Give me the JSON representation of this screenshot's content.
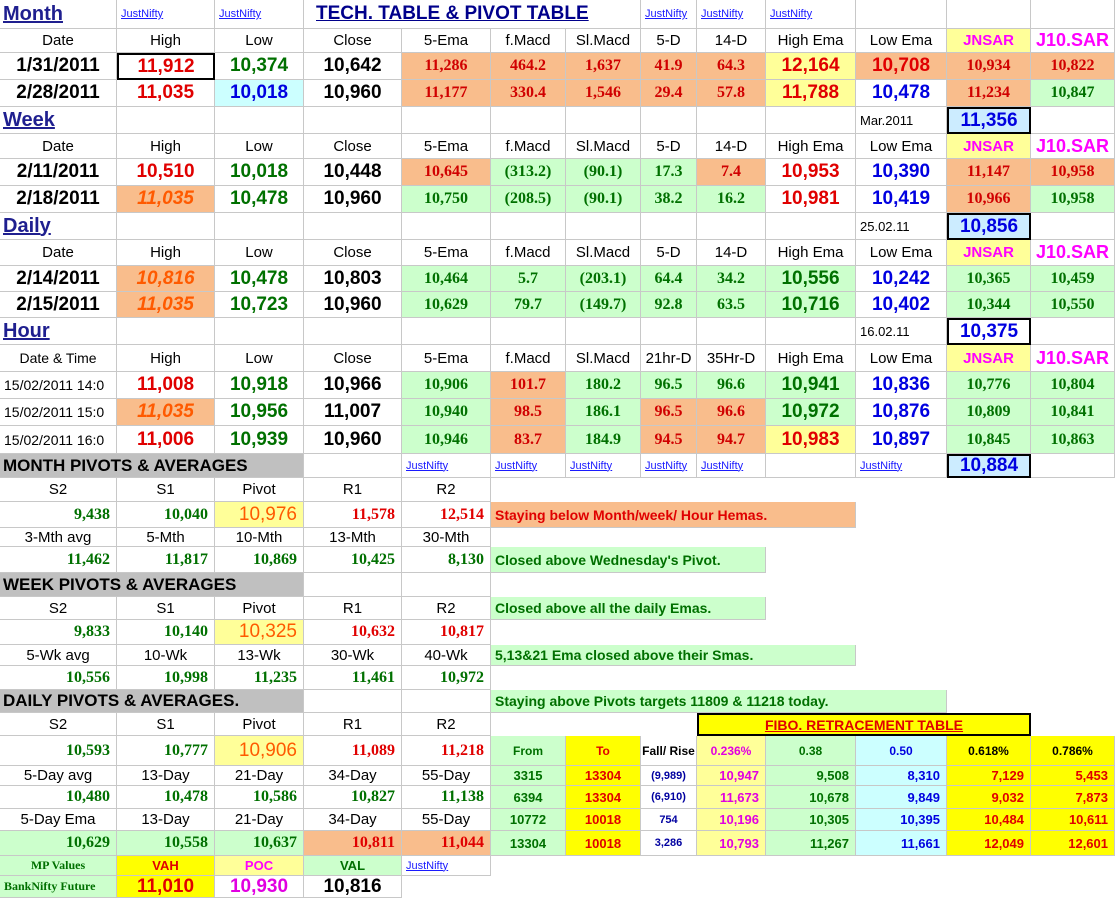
{
  "title": "TECH. TABLE  &  PIVOT TABLE",
  "link": "JustNifty",
  "sections": {
    "month": "Month",
    "week": "Week",
    "daily": "Daily",
    "hour": "Hour"
  },
  "headers": {
    "date": "Date",
    "high": "High",
    "low": "Low",
    "close": "Close",
    "ema5": "5-Ema",
    "fmacd": "f.Macd",
    "slmacd": "Sl.Macd",
    "d5": "5-D",
    "d14": "14-D",
    "highema": "High Ema",
    "lowema": "Low Ema",
    "jnsar": "JNSAR",
    "j10sar": "J10.SAR",
    "datetime": "Date & Time",
    "hr21": "21hr-D",
    "hr35": "35Hr-D"
  },
  "month": {
    "rows": [
      {
        "date": "1/31/2011",
        "high": "11,912",
        "low": "10,374",
        "close": "10,642",
        "ema5": "11,286",
        "fmacd": "464.2",
        "slmacd": "1,637",
        "d5": "41.9",
        "d14": "64.3",
        "highema": "12,164",
        "lowema": "10,708",
        "jnsar": "10,934",
        "j10sar": "10,822"
      },
      {
        "date": "2/28/2011",
        "high": "11,035",
        "low": "10,018",
        "close": "10,960",
        "ema5": "11,177",
        "fmacd": "330.4",
        "slmacd": "1,546",
        "d5": "29.4",
        "d14": "57.8",
        "highema": "11,788",
        "lowema": "10,478",
        "jnsar": "11,234",
        "j10sar": "10,847"
      }
    ],
    "next_label": "Mar.2011",
    "next_value": "11,356"
  },
  "week": {
    "rows": [
      {
        "date": "2/11/2011",
        "high": "10,510",
        "low": "10,018",
        "close": "10,448",
        "ema5": "10,645",
        "fmacd": "(313.2)",
        "slmacd": "(90.1)",
        "d5": "17.3",
        "d14": "7.4",
        "highema": "10,953",
        "lowema": "10,390",
        "jnsar": "11,147",
        "j10sar": "10,958"
      },
      {
        "date": "2/18/2011",
        "high": "11,035",
        "low": "10,478",
        "close": "10,960",
        "ema5": "10,750",
        "fmacd": "(208.5)",
        "slmacd": "(90.1)",
        "d5": "38.2",
        "d14": "16.2",
        "highema": "10,981",
        "lowema": "10,419",
        "jnsar": "10,966",
        "j10sar": "10,958"
      }
    ],
    "next_label": "25.02.11",
    "next_value": "10,856"
  },
  "daily": {
    "rows": [
      {
        "date": "2/14/2011",
        "high": "10,816",
        "low": "10,478",
        "close": "10,803",
        "ema5": "10,464",
        "fmacd": "5.7",
        "slmacd": "(203.1)",
        "d5": "64.4",
        "d14": "34.2",
        "highema": "10,556",
        "lowema": "10,242",
        "jnsar": "10,365",
        "j10sar": "10,459"
      },
      {
        "date": "2/15/2011",
        "high": "11,035",
        "low": "10,723",
        "close": "10,960",
        "ema5": "10,629",
        "fmacd": "79.7",
        "slmacd": "(149.7)",
        "d5": "92.8",
        "d14": "63.5",
        "highema": "10,716",
        "lowema": "10,402",
        "jnsar": "10,344",
        "j10sar": "10,550"
      }
    ],
    "next_label": "16.02.11",
    "next_value": "10,375"
  },
  "hour": {
    "rows": [
      {
        "date": "15/02/2011 14:0",
        "high": "11,008",
        "low": "10,918",
        "close": "10,966",
        "ema5": "10,906",
        "fmacd": "101.7",
        "slmacd": "180.2",
        "d5": "96.5",
        "d14": "96.6",
        "highema": "10,941",
        "lowema": "10,836",
        "jnsar": "10,776",
        "j10sar": "10,804"
      },
      {
        "date": "15/02/2011 15:0",
        "high": "11,035",
        "low": "10,956",
        "close": "11,007",
        "ema5": "10,940",
        "fmacd": "98.5",
        "slmacd": "186.1",
        "d5": "96.5",
        "d14": "96.6",
        "highema": "10,972",
        "lowema": "10,876",
        "jnsar": "10,809",
        "j10sar": "10,841"
      },
      {
        "date": "15/02/2011 16:0",
        "high": "11,006",
        "low": "10,939",
        "close": "10,960",
        "ema5": "10,946",
        "fmacd": "83.7",
        "slmacd": "184.9",
        "d5": "94.5",
        "d14": "94.7",
        "highema": "10,983",
        "lowema": "10,897",
        "jnsar": "10,845",
        "j10sar": "10,863"
      }
    ],
    "next_value": "10,884"
  },
  "pivot_headers": {
    "s2": "S2",
    "s1": "S1",
    "pivot": "Pivot",
    "r1": "R1",
    "r2": "R2"
  },
  "month_pivots": {
    "title": "MONTH  PIVOTS  &  AVERAGES",
    "values": [
      "9,438",
      "10,040",
      "10,976",
      "11,578",
      "12,514"
    ],
    "avg_labels": [
      "3-Mth avg",
      "5-Mth",
      "10-Mth",
      "13-Mth",
      "30-Mth"
    ],
    "avg_values": [
      "11,462",
      "11,817",
      "10,869",
      "10,425",
      "8,130"
    ]
  },
  "week_pivots": {
    "title": "WEEK  PIVOTS  &  AVERAGES",
    "values": [
      "9,833",
      "10,140",
      "10,325",
      "10,632",
      "10,817"
    ],
    "avg_labels": [
      "5-Wk avg",
      "10-Wk",
      "13-Wk",
      "30-Wk",
      "40-Wk"
    ],
    "avg_values": [
      "10,556",
      "10,998",
      "11,235",
      "11,461",
      "10,972"
    ]
  },
  "daily_pivots": {
    "title": "DAILY  PIVOTS  &  AVERAGES.",
    "values": [
      "10,593",
      "10,777",
      "10,906",
      "11,089",
      "11,218"
    ],
    "avg_labels": [
      "5-Day avg",
      "13-Day",
      "21-Day",
      "34-Day",
      "55-Day"
    ],
    "avg_values": [
      "10,480",
      "10,478",
      "10,586",
      "10,827",
      "11,138"
    ],
    "ema_labels": [
      "5-Day Ema",
      "13-Day",
      "21-Day",
      "34-Day",
      "55-Day"
    ],
    "ema_values": [
      "10,629",
      "10,558",
      "10,637",
      "10,811",
      "11,044"
    ]
  },
  "notes": [
    "Staying below Month/week/ Hour Hemas.",
    "Closed above Wednesday's Pivot.",
    "Closed above all the daily Emas.",
    "5,13&21 Ema closed above their Smas.",
    "Staying above Pivots targets 11809 & 11218 today."
  ],
  "fibo": {
    "title": "FIBO. RETRACEMENT TABLE",
    "headers": [
      "From",
      "To",
      "Fall/ Rise",
      "0.236%",
      "0.38",
      "0.50",
      "0.618%",
      "0.786%"
    ],
    "rows": [
      [
        "3315",
        "13304",
        "(9,989)",
        "10,947",
        "9,508",
        "8,310",
        "7,129",
        "5,453"
      ],
      [
        "6394",
        "13304",
        "(6,910)",
        "11,673",
        "10,678",
        "9,849",
        "9,032",
        "7,873"
      ],
      [
        "10772",
        "10018",
        "754",
        "10,196",
        "10,305",
        "10,395",
        "10,484",
        "10,611"
      ],
      [
        "13304",
        "10018",
        "3,286",
        "10,793",
        "11,267",
        "11,661",
        "12,049",
        "12,601"
      ]
    ]
  },
  "mp": {
    "label1": "MP Values",
    "label2": "BankNifty Future",
    "headers": [
      "VAH",
      "POC",
      "VAL"
    ],
    "values": [
      "11,010",
      "10,930",
      "10,816"
    ]
  }
}
